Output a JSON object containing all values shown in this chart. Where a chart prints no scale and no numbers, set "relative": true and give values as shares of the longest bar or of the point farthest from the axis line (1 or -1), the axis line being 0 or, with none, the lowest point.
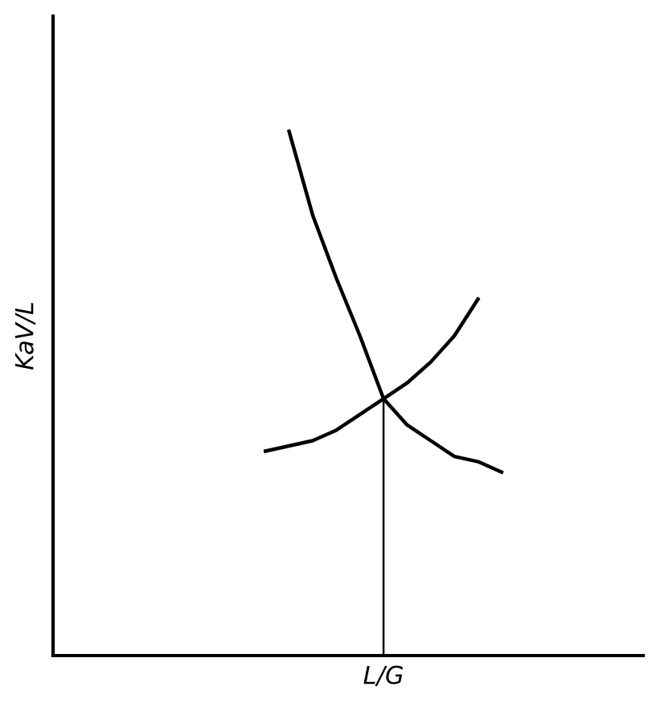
{
  "chart_data": {
    "type": "line",
    "relative": true,
    "xlabel": "L/G",
    "ylabel": "KaV/L",
    "marker": "none",
    "line_style": "solid",
    "categories": [
      null,
      null,
      null,
      null,
      null,
      null,
      null,
      null,
      null,
      null,
      null,
      null,
      null,
      null,
      null,
      null,
      null,
      null,
      null,
      null,
      null,
      null,
      null,
      null
    ],
    "series": [
      {
        "color": "#000000",
        "values": [
          null,
          null,
          null,
          null,
          null,
          null,
          null,
          null,
          null,
          1,
          0.84,
          0.72,
          0.61,
          0.49,
          0.44,
          0.41,
          0.38,
          0.37,
          0.35,
          null,
          null,
          null,
          null,
          null
        ]
      },
      {
        "color": "#000000",
        "values": [
          null,
          null,
          null,
          null,
          null,
          null,
          null,
          null,
          0.39,
          0.4,
          0.41,
          0.43,
          0.46,
          0.49,
          0.52,
          0.56,
          0.61,
          0.68,
          null,
          null,
          null,
          null,
          null,
          null
        ]
      }
    ],
    "ref_lines": [
      {
        "axis": "x",
        "value": null,
        "color": "#000000",
        "line_style": "solid"
      }
    ]
  }
}
